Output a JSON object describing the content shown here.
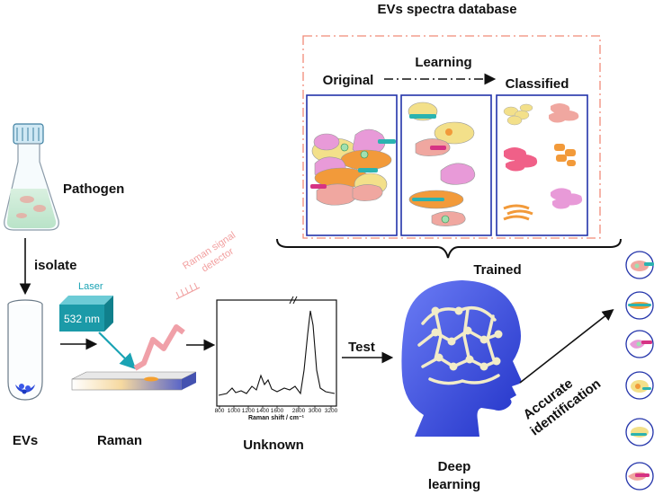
{
  "title": "EVs spectra database",
  "labels": {
    "original": "Original",
    "learning": "Learning",
    "classified": "Classified",
    "trained": "Trained",
    "pathogen": "Pathogen",
    "isolate": "isolate",
    "laser": "Laser",
    "wavelength": "532 nm",
    "detector_line1": "Raman signal",
    "detector_line2": "detector",
    "evs": "EVs",
    "raman": "Raman",
    "unknown": "Unknown",
    "test": "Test",
    "deep_line1": "Deep",
    "deep_line2": "learning",
    "accurate_line1": "Accurate",
    "accurate_line2": "identification"
  },
  "spectrum": {
    "x_axis_label": "Raman shift / cm⁻¹",
    "ticks": [
      "800",
      "1000",
      "1200",
      "1400",
      "1600",
      "2800",
      "3000",
      "3200"
    ]
  },
  "colors": {
    "panel_border": "#2233aa",
    "database_border": "#f08a78",
    "laser_box": "#1b9aa8",
    "laser_text": "#1aa3b4",
    "detector_text": "#f2a0a0",
    "brain": "#3a4fe0",
    "pink_cell": "#e89ad8",
    "yellow_cell": "#f3e08a",
    "orange_cell": "#f29a3a",
    "salmon_cell": "#f0a7a0"
  }
}
